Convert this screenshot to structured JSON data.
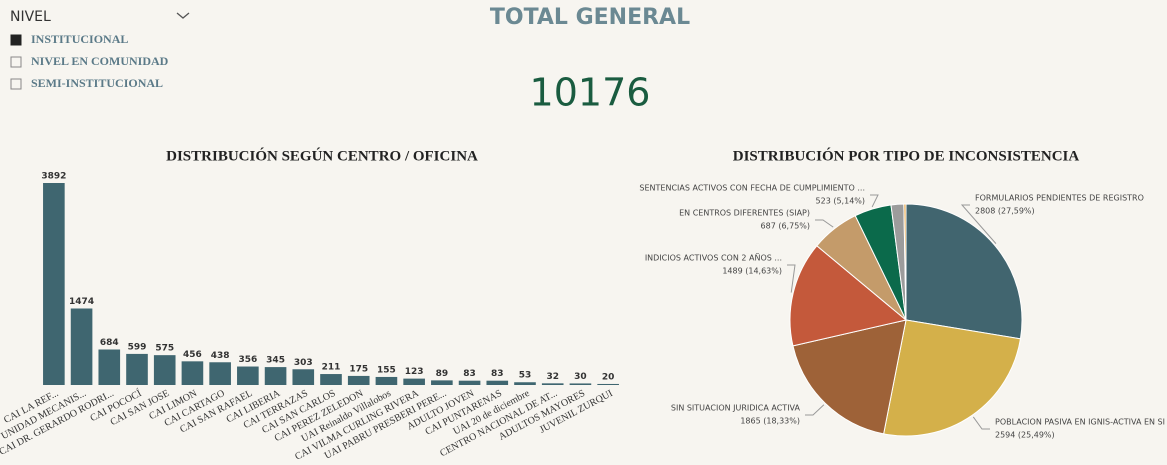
{
  "slicer": {
    "title": "NIVEL",
    "items": [
      {
        "label": "INSTITUCIONAL",
        "checked": true
      },
      {
        "label": "NIVEL EN COMUNIDAD",
        "checked": false
      },
      {
        "label": "SEMI-INSTITUCIONAL",
        "checked": false
      }
    ]
  },
  "kpi": {
    "title": "TOTAL GENERAL",
    "value": 10176
  },
  "chart_data": [
    {
      "type": "bar",
      "title": "DISTRIBUCIÓN SEGÚN CENTRO / OFICINA",
      "color": "#3f6670",
      "categories": [
        "CAI LA REF...",
        "UNIDAD MECANIS...",
        "CAI DR. GERARDO RODRI...",
        "CAI POCOCÍ",
        "CAI SAN JOSE",
        "CAI LIMON",
        "CAI CARTAGO",
        "CAI SAN RAFAEL",
        "CAI LIBERIA",
        "CAI TERRAZAS",
        "CAI SAN CARLOS",
        "CAI PEREZ ZELEDON",
        "UAI Reinaldo Villalobos",
        "CAI VILMA CURLING RIVERA",
        "UAI PABRU PRESBERI PERE...",
        "ADULTO JOVEN",
        "CAI PUNTARENAS",
        "UAI 20 de diciembre",
        "CENTRO NACIONAL DE AT...",
        "ADULTOS MAYORES",
        "JUVENIL ZURQUI"
      ],
      "values": [
        3892,
        1474,
        684,
        599,
        575,
        456,
        438,
        356,
        345,
        303,
        211,
        175,
        155,
        123,
        89,
        83,
        83,
        53,
        32,
        30,
        20
      ]
    },
    {
      "type": "pie",
      "title": "DISTRIBUCIÓN POR TIPO DE INCONSISTENCIA",
      "categories": [
        "FORMULARIOS PENDIENTES DE REGISTRO",
        "POBLACION PASIVA EN IGNIS-ACTIVA EN SI",
        "SIN SITUACION JURIDICA ACTIVA",
        "INDICIOS ACTIVOS CON 2 AÑOS ...",
        "EN CENTROS DIFERENTES (SIAP)",
        "SENTENCIAS ACTIVOS CON FECHA DE CUMPLIMIENTO ...",
        null,
        null
      ],
      "values": [
        2808,
        2594,
        1865,
        1489,
        687,
        523,
        180,
        30
      ],
      "value_labels": [
        "2808 (27,59%)",
        "2594 (25,49%)",
        "1865 (18,33%)",
        "1489 (14,63%)",
        "687 (6,75%)",
        "523 (5,14%)",
        null,
        null
      ],
      "colors": [
        "#41656f",
        "#d4b04a",
        "#9e6238",
        "#c4593b",
        "#c49b6a",
        "#0b6a4b",
        "#9c9c9c",
        "#e7a23a"
      ]
    }
  ]
}
